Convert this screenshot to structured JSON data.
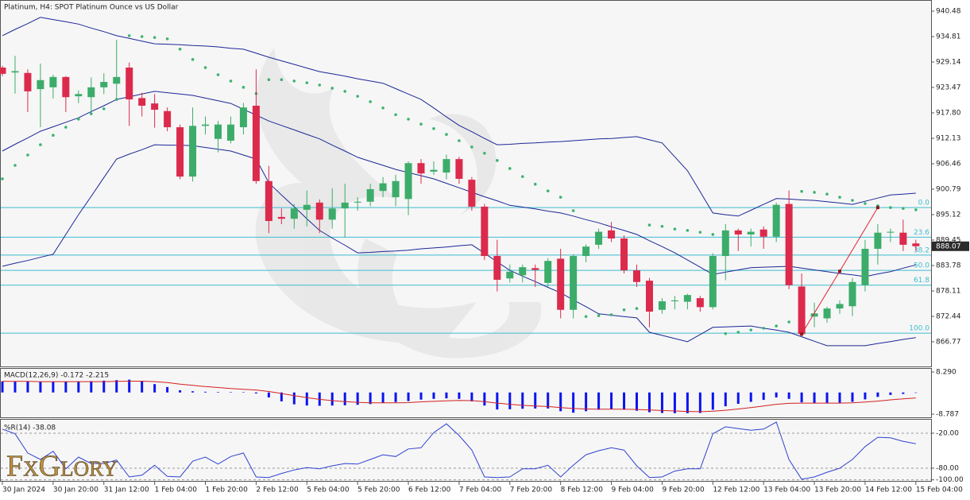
{
  "chart_data": [
    {
      "type": "candlestick",
      "title": "Platinum, H4:  SPOT Platinum Ounce vs US Dollar",
      "categories": [
        "30 Jan 2024",
        null,
        null,
        null,
        "30 Jan 20:00",
        null,
        null,
        null,
        "31 Jan 12:00",
        null,
        null,
        null,
        "1 Feb 04:00",
        null,
        null,
        null,
        "1 Feb 20:00",
        null,
        null,
        null,
        "2 Feb 12:00",
        null,
        null,
        null,
        "5 Feb 04:00",
        null,
        null,
        null,
        "5 Feb 20:00",
        null,
        null,
        null,
        "6 Feb 12:00",
        null,
        null,
        null,
        "7 Feb 04:00",
        null,
        null,
        null,
        "7 Feb 20:00",
        null,
        null,
        null,
        "8 Feb 12:00",
        null,
        null,
        null,
        "9 Feb 04:00",
        null,
        null,
        null,
        "9 Feb 20:00",
        null,
        null,
        null,
        "12 Feb 12:00",
        null,
        null,
        null,
        "13 Feb 04:00",
        null,
        null,
        null,
        "13 Feb 20:00",
        null,
        null,
        null,
        "14 Feb 12:00",
        null,
        null,
        null,
        "15 Feb 04:00"
      ],
      "open": [
        927.9,
        926.8,
        926.7,
        923.1,
        923.5,
        925.8,
        921.5,
        921.3,
        923.5,
        924.3,
        927.9,
        921.1,
        919.9,
        918.2,
        914.6,
        903.6,
        914.9,
        912.0,
        911.6,
        914.6,
        919.4,
        902.6,
        894.6,
        894.2,
        896.2,
        897.8,
        894.0,
        896.5,
        897.8,
        898.0,
        900.4,
        899.0,
        898.6,
        906.6,
        904.7,
        904.5,
        907.5,
        902.9,
        896.9,
        885.9,
        880.9,
        881.6,
        883.2,
        879.9,
        885.3,
        873.9,
        885.9,
        888.4,
        891.6,
        889.8,
        882.7,
        880.4,
        873.9,
        875.8,
        875.7,
        876.5,
        874.5,
        885.9,
        891.6,
        890.7,
        891.8,
        890.2,
        897.5,
        879.1,
        872.4,
        872.0,
        874.2,
        874.7,
        879.4,
        887.5,
        891.1,
        891.1,
        888.7
      ],
      "high": [
        928.3,
        930.5,
        927.5,
        928.8,
        926.3,
        926.0,
        922.8,
        925.7,
        926.6,
        934.1,
        929.0,
        922.3,
        922.0,
        919.0,
        915.2,
        919.0,
        917.0,
        916.0,
        917.0,
        920.0,
        927.5,
        906.0,
        896.5,
        897.5,
        900.5,
        898.5,
        901.0,
        902.0,
        899.0,
        902.0,
        903.5,
        904.0,
        907.0,
        907.5,
        907.0,
        908.5,
        908.0,
        903.5,
        897.5,
        889.5,
        884.0,
        884.0,
        884.0,
        885.4,
        887.5,
        886.3,
        888.5,
        892.0,
        893.5,
        890.5,
        884.0,
        881.0,
        876.5,
        877.0,
        877.5,
        877.0,
        886.5,
        893.0,
        892.0,
        892.0,
        892.5,
        897.8,
        900.5,
        882.0,
        875.5,
        874.6,
        876.0,
        881.0,
        889.5,
        893.0,
        892.0,
        894.0,
        889.5
      ],
      "low": [
        926.0,
        922.1,
        918.0,
        914.6,
        921.0,
        918.0,
        920.0,
        917.8,
        922.0,
        920.5,
        914.9,
        917.0,
        914.5,
        913.7,
        903.0,
        902.5,
        913.0,
        909.0,
        911.0,
        913.0,
        902.0,
        891.0,
        893.0,
        892.0,
        892.5,
        891.0,
        892.0,
        890.0,
        896.0,
        897.0,
        899.0,
        897.0,
        895.0,
        902.0,
        904.0,
        903.0,
        902.0,
        896.0,
        885.0,
        878.0,
        880.0,
        880.0,
        879.0,
        879.0,
        872.0,
        872.0,
        884.5,
        887.5,
        889.0,
        882.0,
        879.0,
        870.0,
        873.0,
        874.0,
        874.0,
        873.5,
        874.0,
        880.5,
        887.0,
        888.0,
        887.5,
        889.0,
        878.5,
        868.0,
        870.0,
        871.0,
        873.0,
        872.5,
        878.0,
        884.0,
        889.0,
        887.0,
        887.0
      ],
      "close": [
        926.5,
        927.1,
        922.6,
        925.1,
        925.8,
        921.3,
        922.0,
        923.5,
        924.7,
        925.8,
        920.8,
        919.4,
        918.5,
        914.6,
        903.6,
        914.9,
        915.2,
        915.2,
        915.2,
        919.0,
        902.6,
        893.7,
        894.2,
        896.5,
        897.3,
        894.0,
        896.5,
        897.8,
        898.0,
        900.8,
        902.1,
        902.6,
        906.6,
        904.3,
        905.1,
        907.5,
        903.1,
        896.9,
        885.9,
        880.6,
        882.4,
        883.4,
        882.8,
        884.8,
        873.9,
        885.9,
        888.0,
        891.3,
        889.8,
        882.7,
        880.1,
        873.5,
        875.8,
        876.0,
        877.2,
        874.5,
        885.9,
        891.6,
        890.7,
        891.3,
        890.2,
        897.3,
        879.4,
        868.5,
        873.1,
        874.2,
        875.2,
        880.1,
        887.5,
        891.1,
        891.3,
        888.4,
        888.07
      ],
      "up_color": "#3cac6a",
      "down_color": "#dc2a4c",
      "ylim": [
        861.1,
        942.96
      ],
      "yticks": [
        940.48,
        934.81,
        929.14,
        923.47,
        {
          "value": 917.8,
          "label": "917.80"
        },
        912.13,
        906.46,
        900.79,
        895.12,
        889.45,
        883.78,
        878.11,
        872.44,
        866.77
      ],
      "last_price": 888.07,
      "overlays": [
        {
          "type": "line",
          "color": "#1c2796",
          "values": [
            935.0,
            936.4,
            937.7,
            939.1,
            938.6,
            938.1,
            937.6,
            936.7,
            935.9,
            935.0,
            934.4,
            933.8,
            933.2,
            933.1,
            933.0,
            932.8,
            932.7,
            932.5,
            932.2,
            932.0,
            931.1,
            930.2,
            929.4,
            928.6,
            927.8,
            927.0,
            926.5,
            926.0,
            925.4,
            924.9,
            924.4,
            923.2,
            922.0,
            920.8,
            918.9,
            916.9,
            915.0,
            913.6,
            912.1,
            910.7,
            910.8,
            911.0,
            911.1,
            911.3,
            911.4,
            911.6,
            911.8,
            912.0,
            912.1,
            912.3,
            912.5,
            911.8,
            911.1,
            908.0,
            904.9,
            900.2,
            895.5,
            895.1,
            894.8,
            896.1,
            897.4,
            898.7,
            898.6,
            898.4,
            898.3,
            898.0,
            897.7,
            897.4,
            898.1,
            898.8,
            899.5,
            899.7,
            899.9
          ]
        },
        {
          "type": "line",
          "color": "#1c2796",
          "values": [
            909.3,
            910.8,
            912.2,
            913.7,
            914.7,
            915.7,
            916.7,
            918.1,
            919.4,
            920.8,
            921.4,
            922.0,
            922.6,
            922.3,
            922.0,
            921.7,
            921.1,
            920.5,
            919.9,
            918.6,
            917.3,
            916.0,
            915.0,
            914.0,
            913.0,
            912.0,
            910.6,
            909.3,
            907.9,
            907.0,
            906.1,
            905.2,
            904.5,
            903.8,
            903.1,
            902.1,
            901.1,
            900.1,
            899.1,
            898.2,
            897.2,
            896.8,
            896.4,
            895.9,
            895.5,
            894.8,
            894.0,
            893.3,
            892.4,
            891.6,
            890.7,
            889.3,
            888.0,
            886.6,
            885.0,
            883.4,
            881.8,
            882.3,
            882.8,
            883.3,
            883.4,
            883.5,
            883.6,
            883.2,
            882.8,
            882.4,
            882.0,
            881.7,
            881.3,
            881.9,
            882.4,
            883.2,
            883.9
          ]
        },
        {
          "type": "line",
          "color": "#1c2796",
          "values": [
            883.6,
            884.3,
            884.9,
            885.6,
            886.3,
            890.7,
            895.1,
            899.2,
            903.4,
            907.5,
            908.6,
            909.6,
            910.7,
            910.6,
            910.6,
            910.5,
            910.1,
            909.7,
            909.3,
            908.4,
            907.5,
            902.2,
            899.5,
            896.9,
            894.2,
            891.6,
            889.9,
            888.3,
            886.6,
            886.7,
            886.9,
            887.0,
            887.2,
            887.5,
            887.7,
            887.9,
            888.2,
            888.4,
            886.5,
            884.6,
            882.7,
            881.4,
            880.2,
            878.9,
            877.7,
            876.1,
            874.6,
            873.0,
            872.7,
            872.4,
            872.1,
            868.9,
            868.2,
            867.5,
            866.8,
            868.4,
            870.0,
            870.1,
            870.2,
            870.3,
            869.8,
            869.4,
            868.9,
            867.9,
            866.9,
            865.9,
            865.9,
            865.9,
            865.9,
            866.4,
            866.8,
            867.3,
            867.7
          ]
        },
        {
          "type": "scatter",
          "color": "#3cb371",
          "values": [
            903.1,
            906.1,
            908.4,
            910.7,
            912.8,
            914.6,
            916.4,
            917.6,
            918.7,
            920.8,
            935.0,
            934.8,
            934.6,
            934.3,
            932.0,
            929.7,
            927.9,
            926.3,
            924.9,
            923.5,
            922.1,
            925.2,
            925.2,
            924.9,
            924.5,
            924.0,
            923.3,
            922.6,
            921.5,
            920.3,
            918.9,
            917.4,
            916.4,
            915.3,
            914.3,
            913.0,
            911.6,
            910.2,
            908.8,
            907.2,
            905.4,
            903.6,
            901.9,
            900.4,
            899.0,
            896.0,
            872.4,
            872.6,
            872.8,
            873.9,
            874.2,
            892.8,
            892.5,
            891.9,
            891.6,
            891.2,
            890.7,
            868.6,
            868.9,
            869.4,
            869.8,
            870.3,
            871.2,
            900.3,
            900.1,
            899.7,
            899.0,
            898.3,
            897.6,
            897.1,
            896.7,
            896.5,
            896.2
          ]
        }
      ],
      "zigzag": {
        "color": "#e0202e",
        "x": [
          63,
          66,
          69
        ],
        "values": [
          868.5,
          882.5,
          896.7
        ]
      },
      "fibonacci": {
        "color": "#3dbdd0",
        "levels": [
          {
            "value": 0,
            "label": "0.0"
          },
          23.6,
          38.2,
          {
            "value": 50,
            "label": "50.0"
          },
          61.8,
          {
            "value": 100,
            "label": "100.0"
          }
        ],
        "prices": [
          896.7,
          890.1,
          886.1,
          882.7,
          879.4,
          868.7
        ]
      }
    },
    {
      "type": "bar",
      "title": "MACD(12,26,9) -0.172 -2.215",
      "ylim": [
        -10.4,
        9.58
      ],
      "yticks": [
        {
          "value": 8.29,
          "label": "8.290"
        },
        -8.787
      ],
      "series": [
        {
          "type": "bar",
          "color": "#0a14f0",
          "values": [
            4.5,
            4.4,
            4.4,
            4.3,
            4.3,
            4.4,
            4.5,
            4.6,
            4.8,
            5.0,
            5.2,
            4.5,
            3.4,
            2.2,
            0.9,
            0.5,
            0.3,
            0.2,
            0.1,
            0.1,
            -0.4,
            -2.0,
            -3.6,
            -4.8,
            -5.3,
            -5.4,
            -5.3,
            -5.2,
            -5.0,
            -4.7,
            -4.2,
            -3.9,
            -3.5,
            -2.9,
            -2.6,
            -2.4,
            -2.6,
            -3.6,
            -5.3,
            -6.9,
            -6.8,
            -6.6,
            -6.5,
            -6.5,
            -7.6,
            -8.2,
            -7.6,
            -7.0,
            -6.7,
            -7.0,
            -7.4,
            -8.0,
            -8.3,
            -8.4,
            -8.4,
            -8.3,
            -7.0,
            -5.6,
            -4.6,
            -3.8,
            -3.0,
            -2.0,
            -2.6,
            -4.0,
            -4.3,
            -4.3,
            -4.2,
            -3.8,
            -2.8,
            -1.8,
            -1.0,
            -0.6,
            -0.172
          ]
        },
        {
          "type": "line",
          "color": "#d42020",
          "values": [
            4.5,
            4.5,
            4.5,
            4.4,
            4.4,
            4.4,
            4.4,
            4.4,
            4.4,
            4.5,
            4.6,
            4.6,
            4.4,
            4.0,
            3.4,
            2.9,
            2.4,
            2.0,
            1.6,
            1.3,
            1.0,
            0.4,
            -0.4,
            -1.3,
            -2.1,
            -2.8,
            -3.3,
            -3.7,
            -4.0,
            -4.2,
            -4.2,
            -4.2,
            -4.1,
            -3.8,
            -3.6,
            -3.4,
            -3.2,
            -3.3,
            -3.7,
            -4.3,
            -4.8,
            -5.2,
            -5.5,
            -5.7,
            -6.1,
            -6.5,
            -6.7,
            -6.8,
            -6.8,
            -6.8,
            -6.9,
            -7.1,
            -7.3,
            -7.5,
            -7.7,
            -7.8,
            -7.6,
            -7.2,
            -6.7,
            -6.1,
            -5.5,
            -4.8,
            -4.4,
            -4.3,
            -4.3,
            -4.3,
            -4.3,
            -4.2,
            -3.9,
            -3.5,
            -3.0,
            -2.6,
            -2.215
          ]
        }
      ]
    },
    {
      "type": "line",
      "title": "%R(14) -38.08",
      "color": "#2f43d0",
      "ylim": [
        -103.2,
        3.1
      ],
      "yticks": [
        {
          "value": -20,
          "label": "-20.00"
        },
        {
          "value": -80,
          "label": "-80.00"
        },
        {
          "value": -100,
          "label": "-100.00"
        }
      ],
      "values": [
        -13,
        -21,
        -54,
        -65,
        -51,
        -81,
        -61,
        -72,
        -72,
        -66,
        -95,
        -92,
        -75,
        -94,
        -95,
        -68,
        -61,
        -73,
        -60,
        -54,
        -95,
        -96,
        -89,
        -83,
        -79,
        -81,
        -76,
        -72,
        -73,
        -65,
        -57,
        -60,
        -47,
        -45,
        -19,
        -4,
        -24,
        -49,
        -95,
        -96,
        -95,
        -81,
        -81,
        -75,
        -95,
        -75,
        -57,
        -50,
        -45,
        -49,
        -76,
        -96,
        -95,
        -85,
        -81,
        -81,
        -21,
        -9,
        -12,
        -15,
        -13,
        -1,
        -65,
        -99,
        -95,
        -87,
        -80,
        -65,
        -43,
        -27,
        -28,
        -34,
        -38.08
      ]
    }
  ],
  "logo": "FxGlory"
}
